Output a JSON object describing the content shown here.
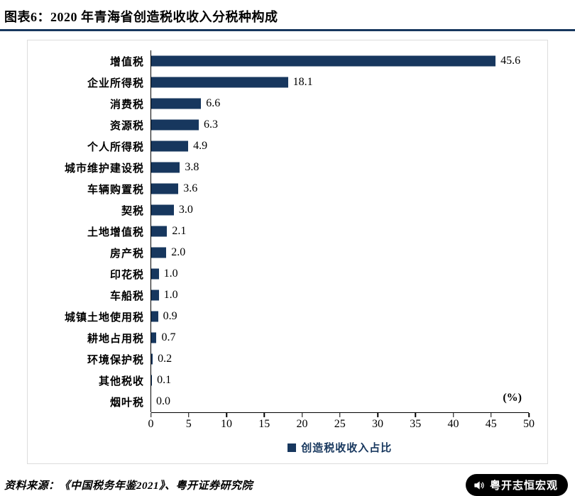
{
  "header": {
    "title": "图表6：2020 年青海省创造税收收入分税种构成"
  },
  "colors": {
    "accent": "#17375E",
    "axis": "#000000"
  },
  "chart_data": {
    "type": "bar",
    "orientation": "horizontal",
    "title": "2020 年青海省创造税收收入分税种构成",
    "categories": [
      "增值税",
      "企业所得税",
      "消费税",
      "资源税",
      "个人所得税",
      "城市维护建设税",
      "车辆购置税",
      "契税",
      "土地增值税",
      "房产税",
      "印花税",
      "车船税",
      "城镇土地使用税",
      "耕地占用税",
      "环境保护税",
      "其他税收",
      "烟叶税"
    ],
    "values": [
      45.6,
      18.1,
      6.6,
      6.3,
      4.9,
      3.8,
      3.6,
      3.0,
      2.1,
      2.0,
      1.0,
      1.0,
      0.9,
      0.7,
      0.2,
      0.1,
      0.0
    ],
    "value_labels": [
      "45.6",
      "18.1",
      "6.6",
      "6.3",
      "4.9",
      "3.8",
      "3.6",
      "3.0",
      "2.1",
      "2.0",
      "1.0",
      "1.0",
      "0.9",
      "0.7",
      "0.2",
      "0.1",
      "0.0"
    ],
    "xlim": [
      0,
      50
    ],
    "xticks": [
      0,
      5,
      10,
      15,
      20,
      25,
      30,
      35,
      40,
      45,
      50
    ],
    "unit_label": "(%)",
    "grid": false,
    "bar_color": "#17375E",
    "legend": {
      "label": "创造税收收入占比",
      "position": "bottom",
      "color": "#17375E"
    }
  },
  "footer": {
    "source": "资料来源：《中国税务年鉴2021》、粤开证券研究院",
    "brand_badge": "粤开志恒宏观"
  }
}
